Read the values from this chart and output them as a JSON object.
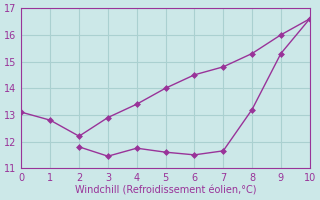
{
  "xlabel": "Windchill (Refroidissement éolien,°C)",
  "line1_x": [
    0,
    1,
    2,
    3,
    4,
    5,
    6,
    7,
    8,
    9,
    10
  ],
  "line1_y": [
    13.1,
    12.8,
    12.2,
    12.9,
    13.4,
    14.0,
    14.5,
    14.8,
    15.3,
    16.0,
    16.6
  ],
  "line2_x": [
    2,
    3,
    4,
    5,
    6,
    7,
    8,
    9,
    10
  ],
  "line2_y": [
    11.8,
    11.45,
    11.75,
    11.6,
    11.5,
    11.65,
    13.2,
    15.3,
    16.6
  ],
  "color": "#993399",
  "bg_color": "#cce8e8",
  "grid_color": "#aad0d0",
  "xlim": [
    0,
    10
  ],
  "ylim": [
    11,
    17
  ],
  "yticks": [
    11,
    12,
    13,
    14,
    15,
    16,
    17
  ],
  "xticks": [
    0,
    1,
    2,
    3,
    4,
    5,
    6,
    7,
    8,
    9,
    10
  ],
  "markersize": 3,
  "linewidth": 1.0
}
